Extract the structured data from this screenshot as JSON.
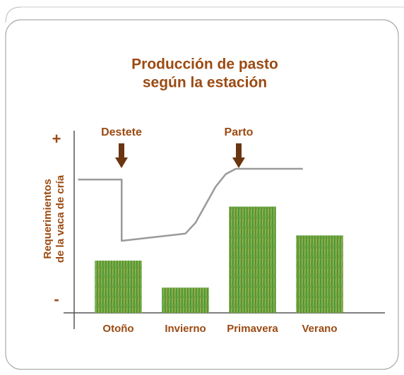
{
  "chart_data": {
    "type": "bar",
    "title": [
      "Producción de pasto",
      "según la estación"
    ],
    "ylabel": [
      "Requerimientos",
      "de  la vaca de cría"
    ],
    "categories": [
      "Otoño",
      "Invierno",
      "Primavera",
      "Verano"
    ],
    "values": [
      29,
      14,
      59,
      43
    ],
    "ylim": [
      0,
      100
    ],
    "yticks": [
      {
        "value": 7,
        "label": "-"
      },
      {
        "value": 96,
        "label": "+"
      }
    ],
    "line": {
      "color": "#9a9a9a",
      "x": [
        -0.6,
        0.05,
        0.05,
        1.0,
        1.15,
        1.3,
        1.45,
        1.6,
        1.75,
        2.75
      ],
      "values": [
        74,
        74,
        40,
        44,
        50,
        60,
        70,
        77,
        80,
        80
      ]
    },
    "annotations": [
      "Destete",
      "Parto"
    ]
  }
}
